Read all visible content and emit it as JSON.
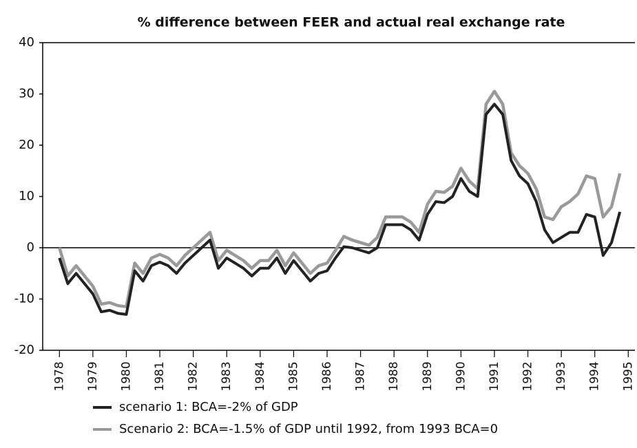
{
  "chart_data": {
    "type": "line",
    "title": "% difference between FEER and actual real exchange rate",
    "x": [
      1978,
      1978.25,
      1978.5,
      1978.75,
      1979,
      1979.25,
      1979.5,
      1979.75,
      1980,
      1980.25,
      1980.5,
      1980.75,
      1981,
      1981.25,
      1981.5,
      1981.75,
      1982,
      1982.25,
      1982.5,
      1982.75,
      1983,
      1983.25,
      1983.5,
      1983.75,
      1984,
      1984.25,
      1984.5,
      1984.75,
      1985,
      1985.25,
      1985.5,
      1985.75,
      1986,
      1986.25,
      1986.5,
      1986.75,
      1987,
      1987.25,
      1987.5,
      1987.75,
      1988,
      1988.25,
      1988.5,
      1988.75,
      1989,
      1989.25,
      1989.5,
      1989.75,
      1990,
      1990.25,
      1990.5,
      1990.75,
      1991,
      1991.25,
      1991.5,
      1991.75,
      1992,
      1992.25,
      1992.5,
      1992.75,
      1993,
      1993.25,
      1993.5,
      1993.75,
      1994,
      1994.25,
      1994.5,
      1994.75
    ],
    "series": [
      {
        "name": "scenario 1: BCA=-2% of GDP",
        "color": "#222222",
        "values": [
          -2,
          -7,
          -5,
          -7,
          -9,
          -12.5,
          -12.2,
          -12.8,
          -13,
          -4.5,
          -6.5,
          -3.5,
          -2.8,
          -3.5,
          -5,
          -3,
          -1.5,
          0,
          1.5,
          -4,
          -2,
          -3,
          -4,
          -5.5,
          -4,
          -4,
          -2,
          -5,
          -2.5,
          -4.5,
          -6.5,
          -5,
          -4.5,
          -2,
          0.2,
          0,
          -0.5,
          -1,
          0,
          4.5,
          4.5,
          4.5,
          3.5,
          1.5,
          6.5,
          9,
          8.8,
          10,
          13.5,
          11,
          10,
          26,
          28,
          26,
          17,
          14,
          12.5,
          9,
          3.5,
          1,
          2,
          3,
          3,
          6.5,
          6,
          -1.5,
          1,
          7
        ]
      },
      {
        "name": "Scenario 2: BCA=-1.5% of GDP until 1992, from 1993 BCA=0",
        "color": "#9a9a9a",
        "values": [
          0,
          -5.5,
          -3.5,
          -5.5,
          -7.5,
          -11,
          -10.7,
          -11.3,
          -11.5,
          -3,
          -5,
          -2,
          -1.3,
          -2,
          -3.5,
          -1.5,
          0,
          1.5,
          3,
          -2.5,
          -0.5,
          -1.5,
          -2.5,
          -4,
          -2.5,
          -2.5,
          -0.5,
          -3.5,
          -1,
          -3,
          -5,
          -3.5,
          -3,
          -0.5,
          2.2,
          1.5,
          1,
          0.5,
          2,
          6,
          6,
          6,
          5,
          3,
          8.5,
          11,
          10.8,
          12,
          15.5,
          13,
          11.5,
          28,
          30.5,
          28,
          18.5,
          16,
          14.5,
          11.5,
          6,
          5.5,
          8,
          9,
          10.5,
          14,
          13.5,
          6,
          8,
          14.5
        ]
      }
    ],
    "xlim": [
      1977.5,
      1995.2
    ],
    "xticks": [
      1978,
      1979,
      1980,
      1981,
      1982,
      1983,
      1984,
      1985,
      1986,
      1987,
      1988,
      1989,
      1990,
      1991,
      1992,
      1993,
      1994,
      1995
    ],
    "ylim": [
      -20,
      40
    ],
    "yticks": [
      -20,
      -10,
      0,
      10,
      20,
      30,
      40
    ]
  }
}
